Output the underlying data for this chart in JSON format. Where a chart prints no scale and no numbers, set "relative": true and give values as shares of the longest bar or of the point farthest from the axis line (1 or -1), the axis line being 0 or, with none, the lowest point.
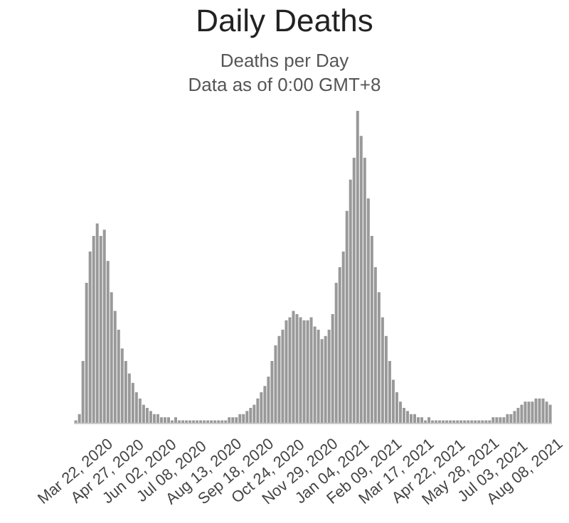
{
  "chart_data": {
    "type": "bar",
    "title": "Daily Deaths",
    "subtitle": "Deaths per Day",
    "annotations": [
      "Data as of 0:00 GMT+8"
    ],
    "relative": true,
    "color": "#999999",
    "categories": [
      "Mar 22, 2020",
      null,
      null,
      null,
      null,
      null,
      null,
      null,
      null,
      "Apr 27, 2020",
      null,
      null,
      null,
      null,
      null,
      null,
      null,
      null,
      "Jun 02, 2020",
      null,
      null,
      null,
      null,
      null,
      null,
      null,
      null,
      "Jul 08, 2020",
      null,
      null,
      null,
      null,
      null,
      null,
      null,
      null,
      "Aug 13, 2020",
      null,
      null,
      null,
      null,
      null,
      null,
      null,
      null,
      "Sep 18, 2020",
      null,
      null,
      null,
      null,
      null,
      null,
      null,
      null,
      "Oct 24, 2020",
      null,
      null,
      null,
      null,
      null,
      null,
      null,
      null,
      "Nov 29, 2020",
      null,
      null,
      null,
      null,
      null,
      null,
      null,
      null,
      "Jan 04, 2021",
      null,
      null,
      null,
      null,
      null,
      null,
      null,
      null,
      "Feb 09, 2021",
      null,
      null,
      null,
      null,
      null,
      null,
      null,
      null,
      "Mar 17, 2021",
      null,
      null,
      null,
      null,
      null,
      null,
      null,
      null,
      "Apr 22, 2021",
      null,
      null,
      null,
      null,
      null,
      null,
      null,
      null,
      "May 28, 2021",
      null,
      null,
      null,
      null,
      null,
      null,
      null,
      null,
      "Jul 03, 2021",
      null,
      null,
      null,
      null,
      null,
      null,
      null,
      null,
      "Aug 08, 2021",
      null,
      null,
      null,
      null,
      null,
      null,
      null
    ],
    "values": [
      0.01,
      0.03,
      0.2,
      0.45,
      0.55,
      0.6,
      0.64,
      0.6,
      0.62,
      0.52,
      0.42,
      0.36,
      0.3,
      0.24,
      0.2,
      0.16,
      0.13,
      0.1,
      0.08,
      0.06,
      0.05,
      0.04,
      0.03,
      0.03,
      0.02,
      0.02,
      0.02,
      0.01,
      0.02,
      0.01,
      0.01,
      0.01,
      0.01,
      0.01,
      0.01,
      0.01,
      0.01,
      0.01,
      0.01,
      0.01,
      0.01,
      0.01,
      0.01,
      0.02,
      0.02,
      0.02,
      0.03,
      0.03,
      0.04,
      0.05,
      0.06,
      0.08,
      0.1,
      0.12,
      0.15,
      0.2,
      0.25,
      0.28,
      0.3,
      0.33,
      0.34,
      0.36,
      0.35,
      0.34,
      0.33,
      0.33,
      0.34,
      0.31,
      0.3,
      0.27,
      0.28,
      0.3,
      0.35,
      0.45,
      0.5,
      0.55,
      0.68,
      0.78,
      0.85,
      1,
      0.92,
      0.85,
      0.72,
      0.6,
      0.5,
      0.42,
      0.34,
      0.28,
      0.2,
      0.14,
      0.1,
      0.07,
      0.05,
      0.04,
      0.03,
      0.03,
      0.02,
      0.02,
      0.01,
      0.02,
      0.01,
      0.01,
      0.01,
      0.01,
      0.01,
      0.01,
      0.01,
      0.01,
      0.01,
      0.01,
      0.01,
      0.01,
      0.01,
      0.01,
      0.01,
      0.01,
      0.01,
      0.02,
      0.02,
      0.02,
      0.02,
      0.03,
      0.03,
      0.04,
      0.05,
      0.06,
      0.07,
      0.07,
      0.07,
      0.08,
      0.08,
      0.08,
      0.07,
      0.06
    ]
  }
}
